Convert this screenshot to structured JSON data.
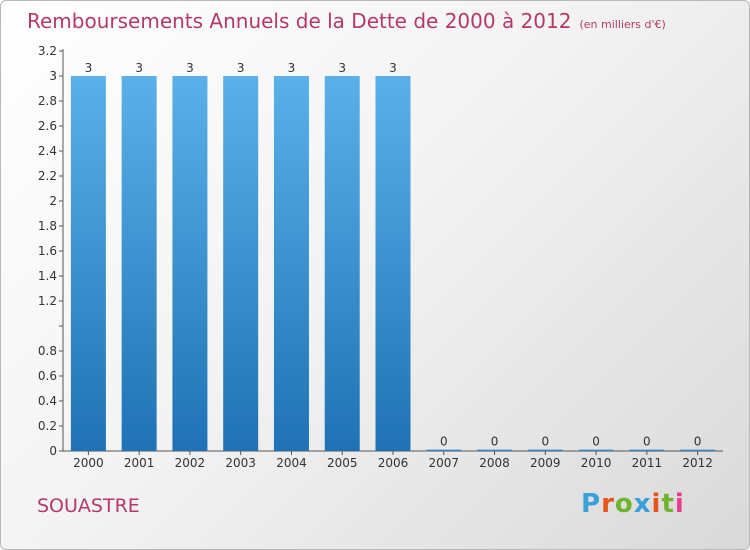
{
  "title": "Remboursements Annuels de la Dette de 2000 à 2012",
  "title_unit": "(en milliers d'€)",
  "commune": "SOUASTRE",
  "logo": {
    "text": "Proxiti",
    "letter_colors": [
      "#3aa0d8",
      "#e8541d",
      "#6fb42c",
      "#3aa0d8",
      "#e8541d",
      "#6fb42c",
      "#e83c8c"
    ]
  },
  "colors": {
    "title": "#b5386a",
    "bar_light": "#5bb0ea",
    "bar_dark": "#1f72b4",
    "axis": "#555555",
    "label": "#333333"
  },
  "chart_data": {
    "type": "bar",
    "categories": [
      "2000",
      "2001",
      "2002",
      "2003",
      "2004",
      "2005",
      "2006",
      "2007",
      "2008",
      "2009",
      "2010",
      "2011",
      "2012"
    ],
    "values": [
      3,
      3,
      3,
      3,
      3,
      3,
      3,
      0,
      0,
      0,
      0,
      0,
      0
    ],
    "data_labels": [
      "3",
      "3",
      "3",
      "3",
      "3",
      "3",
      "3",
      "0",
      "0",
      "0",
      "0",
      "0",
      "0"
    ],
    "ylim": [
      0,
      3.2
    ],
    "yticks": [
      0,
      0.2,
      0.4,
      0.6,
      0.8,
      1,
      1.2,
      1.4,
      1.6,
      1.8,
      2,
      2.2,
      2.4,
      2.6,
      2.8,
      3,
      3.2
    ],
    "ytick_labels": [
      "0",
      "0.2",
      "0.4",
      "0.6",
      "0.8",
      "",
      "1.2",
      "1.4",
      "1.6",
      "1.8",
      "2",
      "2.2",
      "2.4",
      "2.6",
      "2.8",
      "3",
      "3.2"
    ],
    "grid": false
  }
}
